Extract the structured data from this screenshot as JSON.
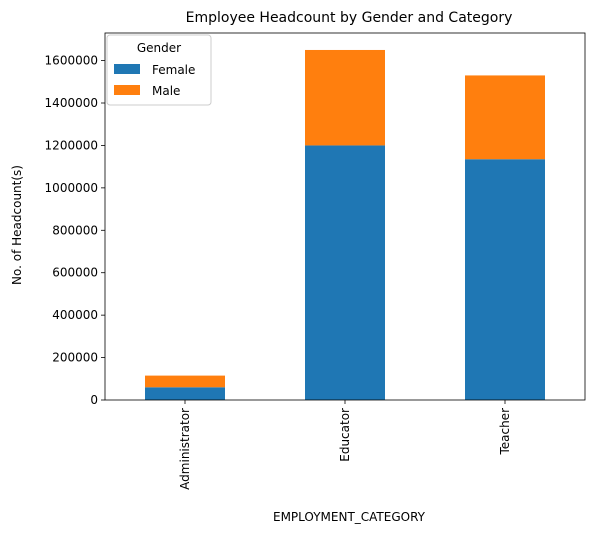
{
  "chart_data": {
    "type": "bar",
    "stacked": true,
    "title": "Employee Headcount by Gender and Category",
    "xlabel": "EMPLOYMENT_CATEGORY",
    "ylabel": "No. of Headcount(s)",
    "categories": [
      "Administrator",
      "Educator",
      "Teacher"
    ],
    "series": [
      {
        "name": "Female",
        "color": "#1f77b4",
        "values": [
          60000,
          1200000,
          1135000
        ]
      },
      {
        "name": "Male",
        "color": "#ff7f0e",
        "values": [
          55000,
          450000,
          395000
        ]
      }
    ],
    "ylim": [
      0,
      1730000
    ],
    "yticks": [
      0,
      200000,
      400000,
      600000,
      800000,
      1000000,
      1200000,
      1400000,
      1600000
    ],
    "grid": false,
    "legend": {
      "title": "Gender",
      "position": "top-left"
    }
  }
}
